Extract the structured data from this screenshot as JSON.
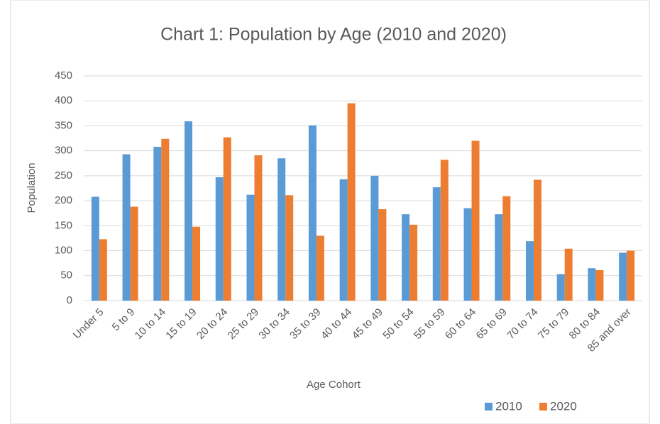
{
  "chart_data": {
    "type": "bar",
    "title": "Chart 1: Population by Age (2010 and 2020)",
    "x_label": "Age Cohort",
    "y_label": "Population",
    "categories": [
      "Under 5",
      "5 to 9",
      "10 to 14",
      "15 to 19",
      "20 to 24",
      "25 to 29",
      "30 to 34",
      "35 to 39",
      "40 to 44",
      "45 to 49",
      "50 to 54",
      "55 to 59",
      "60 to 64",
      "65 to 69",
      "70 to 74",
      "75 to 79",
      "80 to 84",
      "85 and over"
    ],
    "series": [
      {
        "name": "2010",
        "color": "#5b9bd5",
        "values": [
          208,
          293,
          308,
          359,
          247,
          212,
          285,
          351,
          243,
          250,
          173,
          227,
          185,
          173,
          119,
          53,
          65,
          96
        ]
      },
      {
        "name": "2020",
        "color": "#ed7d31",
        "values": [
          123,
          188,
          324,
          148,
          327,
          291,
          211,
          130,
          395,
          183,
          152,
          282,
          320,
          209,
          242,
          104,
          61,
          100
        ]
      }
    ],
    "ylim": [
      0,
      450
    ],
    "yticks": [
      0,
      50,
      100,
      150,
      200,
      250,
      300,
      350,
      400,
      450
    ],
    "grid": true,
    "legend": "bottom"
  }
}
